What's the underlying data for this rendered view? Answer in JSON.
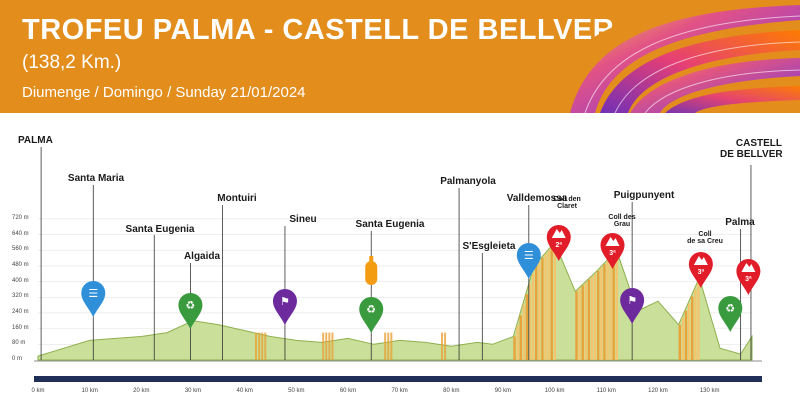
{
  "header": {
    "title": "TROFEU PALMA - CASTELL DE BELLVER",
    "distance": "(138,2 Km.)",
    "date": "Diumenge / Domingo / Sunday 21/01/2024"
  },
  "colors": {
    "header_bg": "#e28d1c",
    "profile_fill": "#c9df9a",
    "climb_fill": "#e8a23a",
    "intermediate_sprint": "#2f8fd8",
    "sprint_green": "#3a9a3e",
    "feed_zone": "#6c2a9c",
    "mountain_red": "#e11d2a",
    "supply_orange": "#f39c12"
  },
  "places": {
    "start": "PALMA",
    "santa_maria": "Santa Maria",
    "santa_eugenia_1": "Santa Eugenia",
    "algaida": "Algaida",
    "montuiri": "Montuiri",
    "sineu": "Sineu",
    "santa_eugenia_2": "Santa Eugenia",
    "palmanyola": "Palmanyola",
    "sesgleieta": "S'Esgleieta",
    "valldemossa": "Valldemossa",
    "puigpunyent": "Puigpunyent",
    "palma_2": "Palma",
    "finish_line1": "CASTELL",
    "finish_line2": "DE BELLVER"
  },
  "climbs": [
    {
      "line1": "Coll den",
      "line2": "Claret",
      "cat": "2ª"
    },
    {
      "line1": "Coll des",
      "line2": "Grau",
      "cat": "3ª"
    },
    {
      "line1": "Coll",
      "line2": "de sa Creu",
      "cat": "3ª"
    },
    {
      "line1": "",
      "line2": "",
      "cat": "3ª"
    }
  ],
  "elevation_axis": [
    "720 m",
    "640 m",
    "560 m",
    "480 m",
    "400 m",
    "320 m",
    "240 m",
    "160 m",
    "80 m",
    "0 m"
  ],
  "km_axis": [
    "0 km",
    "10 km",
    "20 km",
    "30 km",
    "40 km",
    "50 km",
    "60 km",
    "70 km",
    "80 km",
    "90 km",
    "100 km",
    "110 km",
    "120 km",
    "130 km"
  ],
  "chart_data": {
    "type": "area",
    "x": [
      0,
      5,
      10,
      15,
      20,
      25,
      30,
      35,
      40,
      45,
      50,
      55,
      60,
      65,
      70,
      75,
      80,
      85,
      88,
      92,
      96,
      100,
      104,
      108,
      112,
      116,
      120,
      124,
      128,
      132,
      136,
      138.2
    ],
    "y": [
      20,
      60,
      100,
      110,
      120,
      140,
      200,
      180,
      150,
      120,
      100,
      90,
      110,
      80,
      100,
      90,
      70,
      90,
      80,
      120,
      480,
      600,
      350,
      450,
      560,
      250,
      300,
      180,
      420,
      60,
      30,
      120
    ],
    "xlabel": "",
    "ylabel": "",
    "xlim": [
      0,
      138.2
    ],
    "ylim": [
      0,
      760
    ]
  }
}
